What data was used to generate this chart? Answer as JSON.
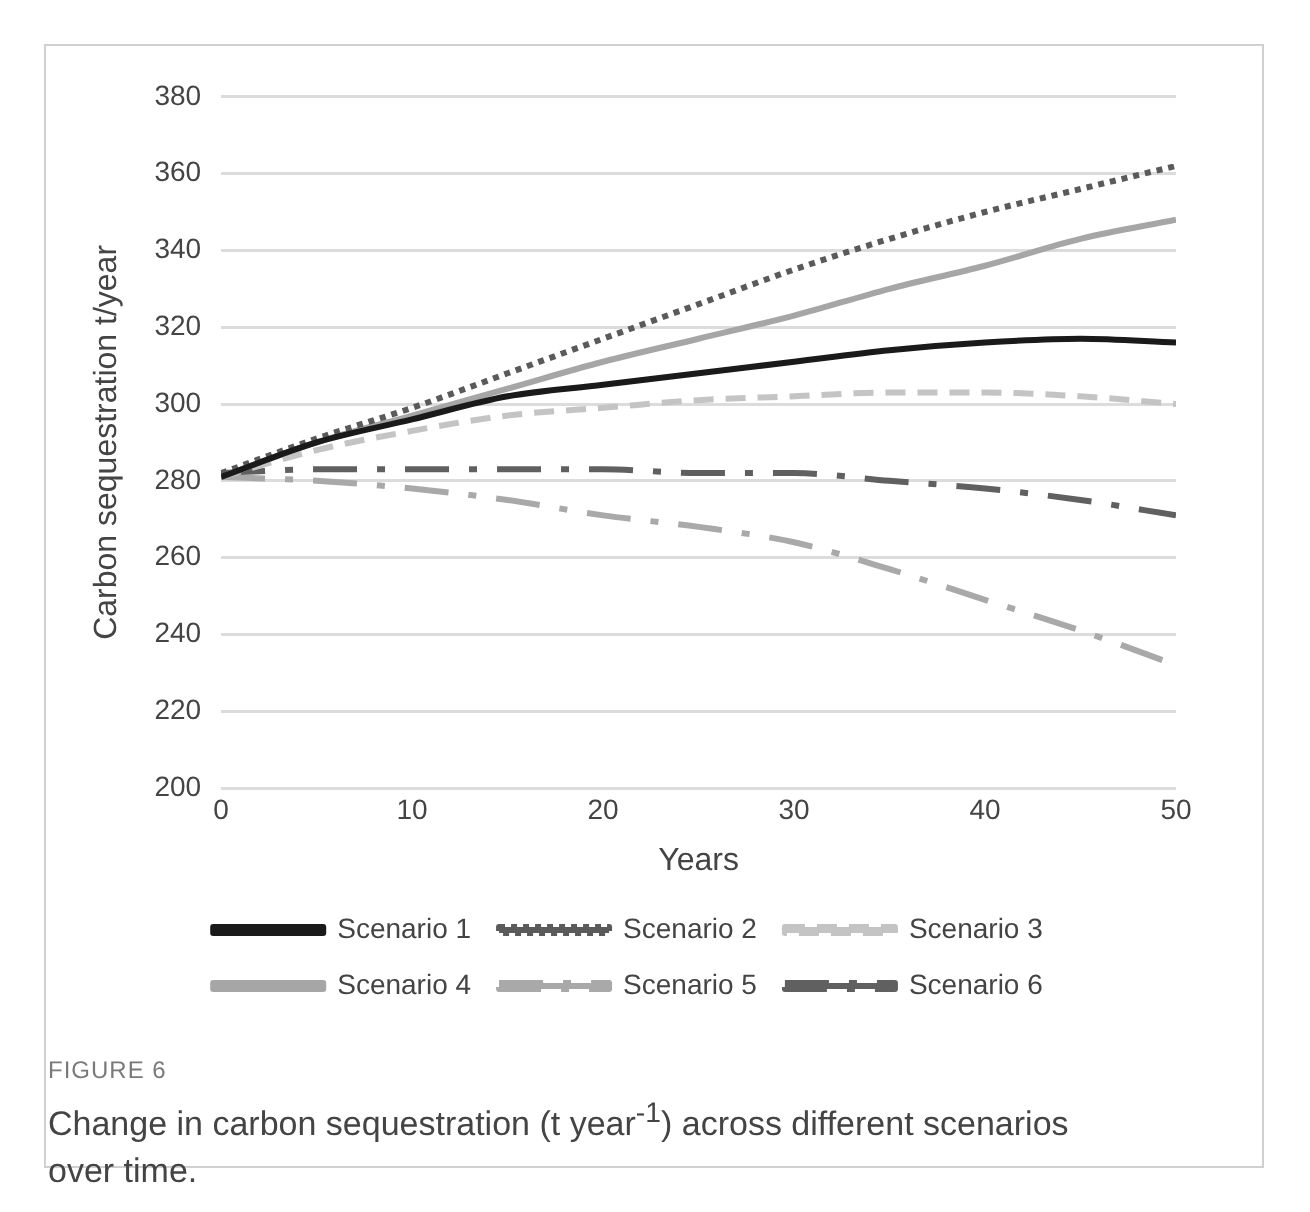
{
  "chart_data": {
    "type": "line",
    "xlabel": "Years",
    "ylabel": "Carbon sequestration t/year",
    "x": [
      0,
      5,
      10,
      15,
      20,
      25,
      30,
      35,
      40,
      45,
      50
    ],
    "xlim": [
      0,
      50
    ],
    "xticks": [
      0,
      10,
      20,
      30,
      40,
      50
    ],
    "ylim": [
      200,
      380
    ],
    "yticks": [
      200,
      220,
      240,
      260,
      280,
      300,
      320,
      340,
      360,
      380
    ],
    "grid": "y",
    "legend": "bottom",
    "marker": "none",
    "series": [
      {
        "name": "Scenario 1",
        "color": "#1a1a1a",
        "line_style": "solid",
        "values": [
          281,
          290,
          296,
          302,
          305,
          308,
          311,
          314,
          316,
          317,
          316
        ]
      },
      {
        "name": "Scenario 2",
        "color": "#5a5a5a",
        "line_style": "dotted",
        "values": [
          282,
          291,
          299,
          308,
          317,
          326,
          335,
          343,
          350,
          356,
          362
        ]
      },
      {
        "name": "Scenario 3",
        "color": "#c4c4c4",
        "line_style": "dashed",
        "values": [
          281,
          288,
          293,
          297,
          299,
          301,
          302,
          303,
          303,
          302,
          300
        ]
      },
      {
        "name": "Scenario 4",
        "color": "#a6a6a6",
        "line_style": "solid",
        "values": [
          281,
          290,
          297,
          304,
          311,
          317,
          323,
          330,
          336,
          343,
          348
        ]
      },
      {
        "name": "Scenario 5",
        "color": "#a9a9a9",
        "line_style": "dashdot",
        "values": [
          281,
          280,
          278,
          275,
          271,
          268,
          264,
          257,
          249,
          241,
          232
        ]
      },
      {
        "name": "Scenario 6",
        "color": "#606060",
        "line_style": "dashdot",
        "values": [
          282,
          283,
          283,
          283,
          283,
          282,
          282,
          280,
          278,
          275,
          271
        ]
      }
    ],
    "annotations": [
      "FIGURE 6",
      "Change in carbon sequestration (t year$^{-1}$) across different scenarios over time."
    ]
  }
}
